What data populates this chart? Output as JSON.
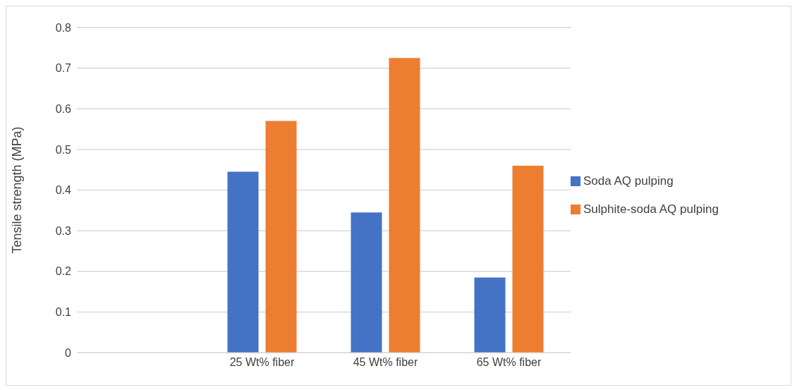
{
  "chart_data": {
    "type": "bar",
    "ylabel": "Tensile strength (MPa)",
    "categories": [
      null,
      "25 Wt% fiber",
      "45 Wt% fiber",
      "65 Wt% fiber"
    ],
    "series": [
      {
        "name": "Soda AQ pulping",
        "color": "#4472c4",
        "values": [
          null,
          0.445,
          0.345,
          0.185
        ]
      },
      {
        "name": "Sulphite-soda AQ pulping",
        "color": "#ed7d31",
        "values": [
          null,
          0.57,
          0.725,
          0.46
        ]
      }
    ],
    "ylim": [
      0,
      0.8
    ],
    "yticks": [
      0,
      0.1,
      0.2,
      0.3,
      0.4,
      0.5,
      0.6,
      0.7,
      0.8
    ],
    "grid": "y",
    "legend": "right"
  }
}
